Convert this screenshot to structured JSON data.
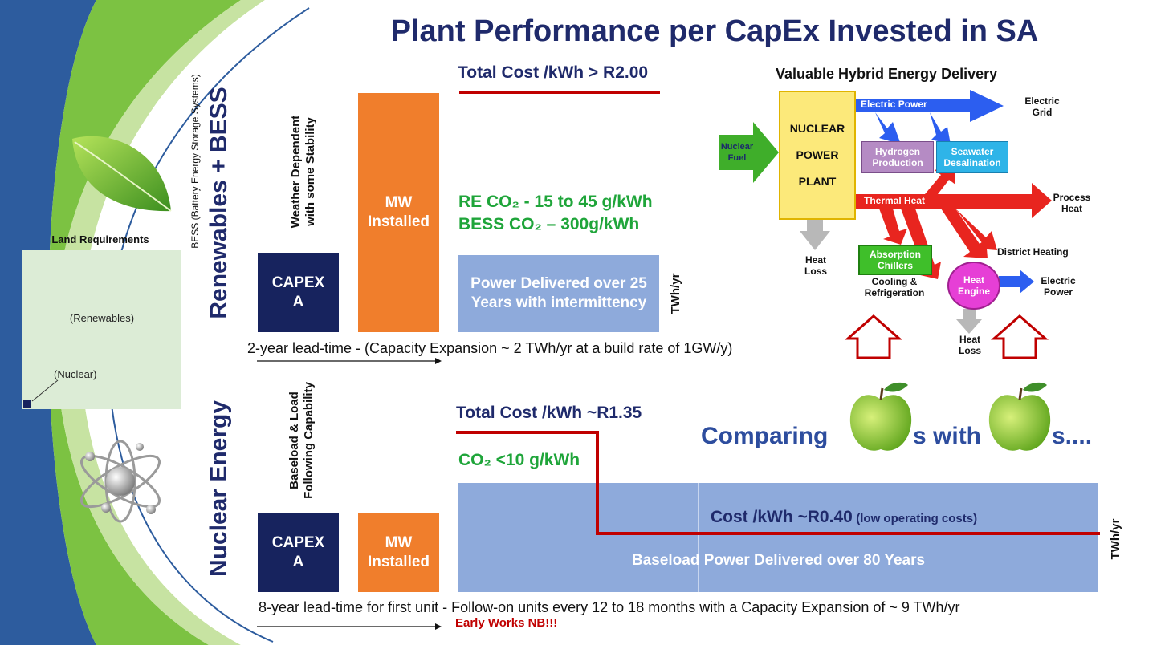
{
  "title": "Plant Performance per CapEx Invested in SA",
  "land": {
    "heading": "Land Requirements",
    "renewables_label": "(Renewables)",
    "nuclear_label": "(Nuclear)"
  },
  "renewables": {
    "side_title": "Renewables + BESS",
    "bess_note": "BESS (Battery Energy Storage Systems)",
    "dependency_line1": "Weather Dependent",
    "dependency_line2": "with some Stability",
    "capex_line1": "CAPEX",
    "capex_line2": "A",
    "mw_line1": "MW",
    "mw_line2": "Installed",
    "total_cost": "Total Cost /kWh > R2.00",
    "re_co2": "RE CO₂ - 15 to 45 g/kWh",
    "bess_co2": "BESS CO₂ – 300g/kWh",
    "power_line1": "Power Delivered over 25",
    "power_line2": "Years with intermittency",
    "unit": "TWh/yr",
    "lead_time": "2-year lead-time - (Capacity Expansion ~ 2 TWh/yr at a build rate of 1GW/y)"
  },
  "nuclear": {
    "side_title": "Nuclear Energy",
    "capability_line1": "Baseload & Load",
    "capability_line2": "Following Capability",
    "capex_line1": "CAPEX",
    "capex_line2": "A",
    "mw_line1": "MW",
    "mw_line2": "Installed",
    "total_cost": "Total Cost /kWh ~R1.35",
    "co2": "CO₂ <10 g/kWh",
    "operating_cost": "Cost /kWh ~R0.40",
    "operating_note": "(low operating costs)",
    "power_text": "Baseload Power Delivered over 80 Years",
    "unit": "TWh/yr",
    "lead_time": "8-year lead-time for first unit - Follow-on units every 12 to 18 months with a Capacity Expansion of ~ 9 TWh/yr",
    "early_works": "Early Works NB!!!"
  },
  "hybrid": {
    "title": "Valuable Hybrid Energy Delivery",
    "nuclear_fuel_line1": "Nuclear",
    "nuclear_fuel_line2": "Fuel",
    "plant_line1": "NUCLEAR",
    "plant_line2": "POWER",
    "plant_line3": "PLANT",
    "electric_power": "Electric Power",
    "electric_grid_line1": "Electric",
    "electric_grid_line2": "Grid",
    "hydrogen_line1": "Hydrogen",
    "hydrogen_line2": "Production",
    "seawater_line1": "Seawater",
    "seawater_line2": "Desalination",
    "thermal_heat": "Thermal Heat",
    "process_heat_line1": "Process",
    "process_heat_line2": "Heat",
    "district_heating": "District Heating",
    "heat_loss_line1": "Heat",
    "heat_loss_line2": "Loss",
    "absorption_line1": "Absorption",
    "absorption_line2": "Chillers",
    "cooling_line1": "Cooling &",
    "cooling_line2": "Refrigeration",
    "heat_engine_line1": "Heat",
    "heat_engine_line2": "Engine",
    "engine_power_line1": "Electric",
    "engine_power_line2": "Power",
    "engine_loss_line1": "Heat",
    "engine_loss_line2": "Loss"
  },
  "comparing": {
    "word1": "Comparing",
    "word2": "s with",
    "word3": "s...."
  },
  "colors": {
    "navy": "#17235e",
    "orange": "#f07e2c",
    "light_blue": "#8eaadb",
    "green_text": "#1fa53a",
    "red_line": "#c00000",
    "title_blue": "#1f2a6b"
  }
}
